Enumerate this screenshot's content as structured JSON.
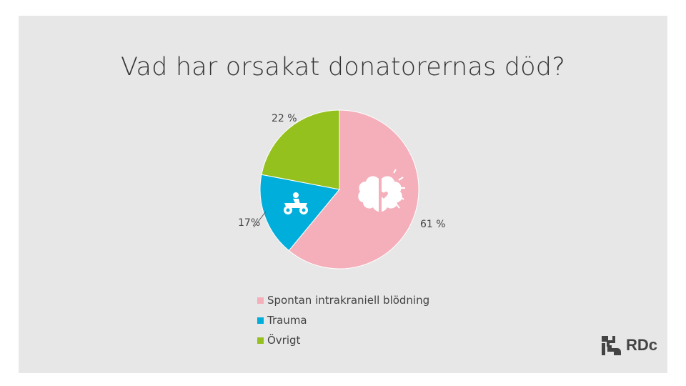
{
  "title": "Vad har orsakat donatorernas död?",
  "chart_data": {
    "type": "pie",
    "slices": [
      {
        "name": "Spontan intrakraniell blödning",
        "value": 61,
        "label": "61 %",
        "color": "#f4afbb",
        "icon": "brain-heart-icon"
      },
      {
        "name": "Trauma",
        "value": 17,
        "label": "17%",
        "color": "#00aedb",
        "icon": "atv-rider-icon"
      },
      {
        "name": "Övrigt",
        "value": 22,
        "label": "22 %",
        "color": "#95c11f"
      }
    ],
    "legend_position": "bottom"
  },
  "logo": {
    "text": "RDc",
    "icon": "rdc-logo-icon"
  }
}
